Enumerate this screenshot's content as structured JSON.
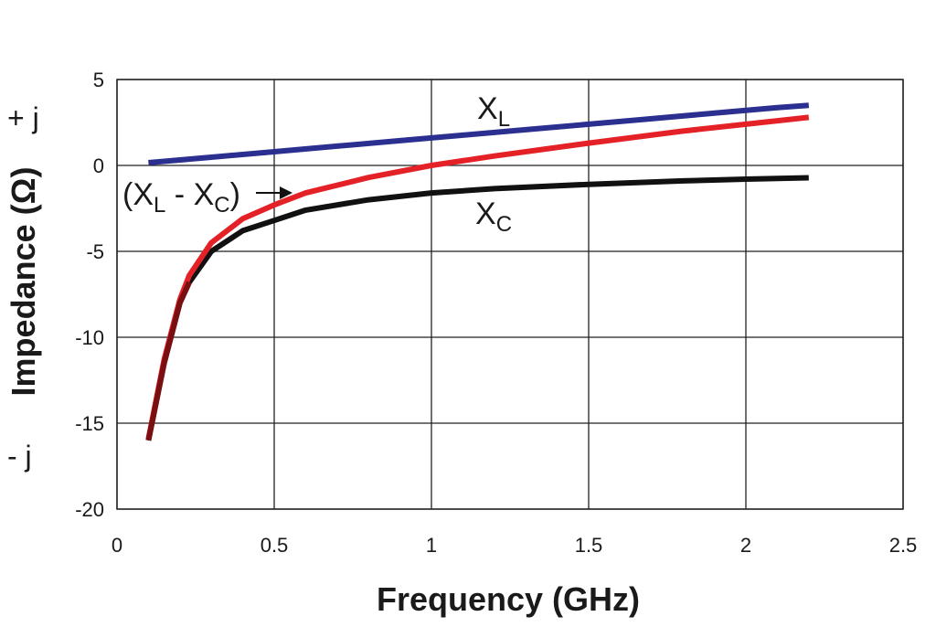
{
  "chart_data": {
    "type": "line",
    "xlabel": "Frequency (GHz)",
    "ylabel": "Impedance (Ω)",
    "xlim": [
      0,
      2.5
    ],
    "ylim": [
      -20,
      5
    ],
    "x_ticks": [
      "0",
      "0.5",
      "1",
      "1.5",
      "2",
      "2.5"
    ],
    "y_ticks": [
      "5",
      "0",
      "-5",
      "-10",
      "-15",
      "-20"
    ],
    "grid": true,
    "side_labels": {
      "positive": "+ j",
      "negative": "- j"
    },
    "series": [
      {
        "key": "XL",
        "color": "#2b2f8f",
        "x": [
          0.1,
          0.3,
          0.5,
          0.7,
          0.9,
          1.1,
          1.3,
          1.5,
          1.7,
          1.9,
          2.1,
          2.2
        ],
        "y": [
          0.16,
          0.48,
          0.8,
          1.12,
          1.44,
          1.76,
          2.08,
          2.4,
          2.72,
          3.04,
          3.36,
          3.5
        ]
      },
      {
        "key": "XC",
        "color": "#111111",
        "x": [
          0.1,
          0.15,
          0.2,
          0.23,
          0.3,
          0.4,
          0.5,
          0.6,
          0.8,
          1.0,
          1.2,
          1.5,
          1.8,
          2.0,
          2.2
        ],
        "y": [
          -16.0,
          -11.5,
          -8.0,
          -6.8,
          -5.0,
          -3.8,
          -3.2,
          -2.6,
          -2.0,
          -1.6,
          -1.35,
          -1.1,
          -0.9,
          -0.8,
          -0.72
        ]
      },
      {
        "key": "XL-XC",
        "color": "#e32127",
        "x": [
          0.1,
          0.15,
          0.2,
          0.23,
          0.3,
          0.4,
          0.5,
          0.6,
          0.8,
          1.0,
          1.2,
          1.5,
          1.8,
          2.0,
          2.2
        ],
        "y": [
          -15.9,
          -11.3,
          -7.8,
          -6.4,
          -4.5,
          -3.1,
          -2.3,
          -1.6,
          -0.7,
          0.0,
          0.55,
          1.3,
          2.0,
          2.4,
          2.8
        ]
      }
    ],
    "annotations": {
      "xl": {
        "main": "X",
        "sub": "L"
      },
      "xc": {
        "main": "X",
        "sub": "C"
      },
      "diff": {
        "p1": "(X",
        "s1": "L",
        "p2": " - X",
        "s2": "C",
        "p3": ")"
      }
    }
  }
}
